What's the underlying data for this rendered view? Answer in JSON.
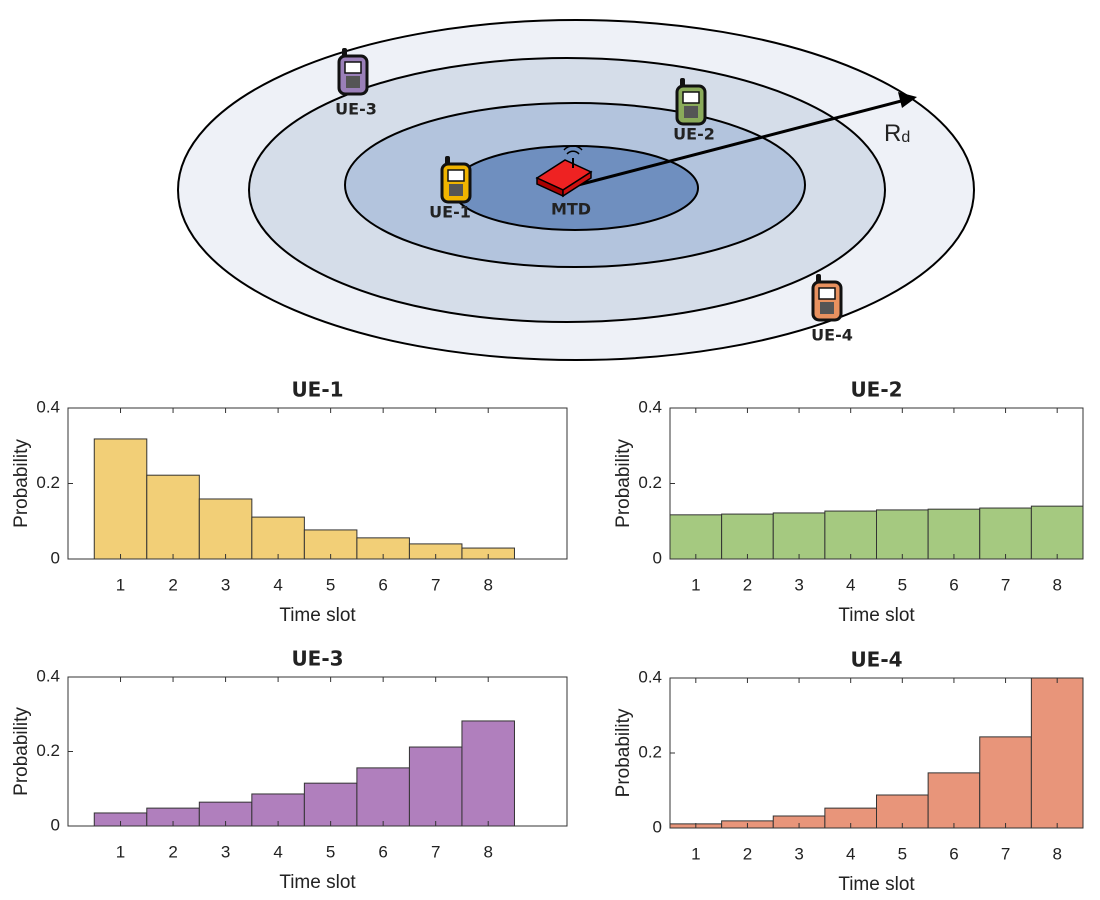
{
  "diagram": {
    "nodes": [
      {
        "label": "UE-1"
      },
      {
        "label": "UE-2"
      },
      {
        "label": "UE-3"
      },
      {
        "label": "UE-4"
      },
      {
        "label": "MTD"
      }
    ],
    "radius_label": "R",
    "radius_subscript": "d"
  },
  "chart_data": [
    {
      "type": "bar",
      "title": "UE-1",
      "xlabel": "Time slot",
      "ylabel": "Probability",
      "x": [
        1,
        2,
        3,
        4,
        5,
        6,
        7,
        8
      ],
      "values": [
        0.318,
        0.222,
        0.159,
        0.111,
        0.077,
        0.056,
        0.04,
        0.029
      ],
      "color": "#f2cf77",
      "xlim": [
        0,
        9.5
      ],
      "ylim": [
        0,
        0.4
      ],
      "xticks": [
        1,
        2,
        3,
        4,
        5,
        6,
        7,
        8
      ],
      "yticks": [
        0,
        0.2,
        0.4
      ]
    },
    {
      "type": "bar",
      "title": "UE-2",
      "xlabel": "Time slot",
      "ylabel": "Probability",
      "x": [
        1,
        2,
        3,
        4,
        5,
        6,
        7,
        8
      ],
      "values": [
        0.117,
        0.119,
        0.122,
        0.127,
        0.13,
        0.132,
        0.135,
        0.14
      ],
      "color": "#a5c980",
      "xlim": [
        0.5,
        8.5
      ],
      "ylim": [
        0,
        0.4
      ],
      "xticks": [
        1,
        2,
        3,
        4,
        5,
        6,
        7,
        8
      ],
      "yticks": [
        0,
        0.2,
        0.4
      ]
    },
    {
      "type": "bar",
      "title": "UE-3",
      "xlabel": "Time slot",
      "ylabel": "Probability",
      "x": [
        1,
        2,
        3,
        4,
        5,
        6,
        7,
        8
      ],
      "values": [
        0.035,
        0.048,
        0.064,
        0.086,
        0.115,
        0.156,
        0.212,
        0.282
      ],
      "color": "#b07fbd",
      "xlim": [
        0,
        9.5
      ],
      "ylim": [
        0,
        0.4
      ],
      "xticks": [
        1,
        2,
        3,
        4,
        5,
        6,
        7,
        8
      ],
      "yticks": [
        0,
        0.2,
        0.4
      ]
    },
    {
      "type": "bar",
      "title": "UE-4",
      "xlabel": "Time slot",
      "ylabel": "Probability",
      "x": [
        1,
        2,
        3,
        4,
        5,
        6,
        7,
        8
      ],
      "values": [
        0.011,
        0.019,
        0.032,
        0.053,
        0.088,
        0.147,
        0.243,
        0.4
      ],
      "color": "#e8957a",
      "xlim": [
        0.5,
        8.5
      ],
      "ylim": [
        0,
        0.4
      ],
      "xticks": [
        1,
        2,
        3,
        4,
        5,
        6,
        7,
        8
      ],
      "yticks": [
        0,
        0.2,
        0.4
      ]
    }
  ]
}
